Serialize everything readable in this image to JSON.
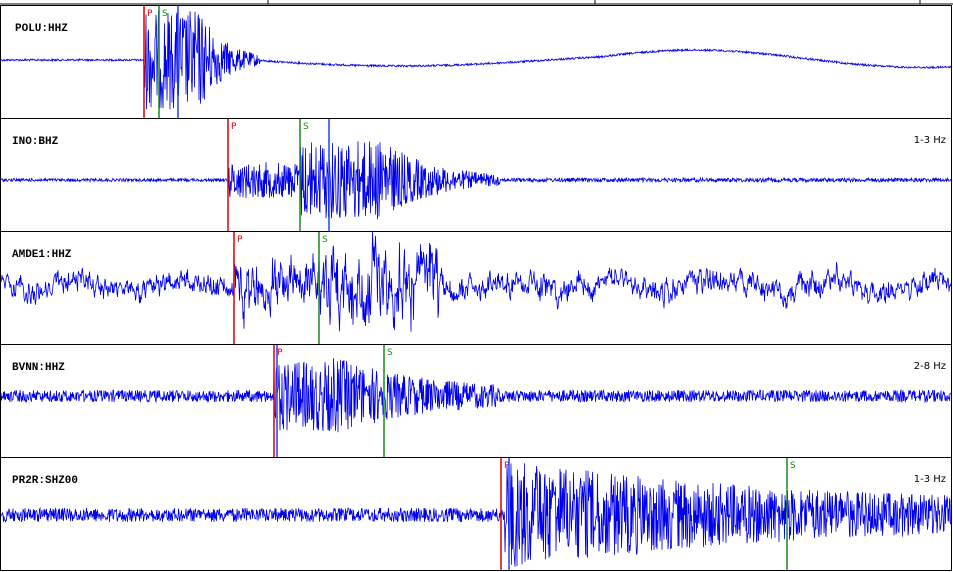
{
  "traces": [
    {
      "station": "POLU:HHZ",
      "picks": [
        {
          "label": "P"
        },
        {
          "label": "S"
        }
      ]
    },
    {
      "station": "INO:BHZ",
      "filter": "1-3 Hz",
      "picks": [
        {
          "label": "P"
        },
        {
          "label": "S"
        }
      ]
    },
    {
      "station": "AMDE1:HHZ",
      "picks": [
        {
          "label": "P"
        },
        {
          "label": "S"
        }
      ]
    },
    {
      "station": "BVNN:HHZ",
      "filter": "2-8 Hz",
      "picks": [
        {
          "label": "P"
        },
        {
          "label": "S"
        }
      ]
    },
    {
      "station": "PR2R:SHZ00",
      "filter": "1-3 Hz",
      "picks": [
        {
          "label": "P"
        },
        {
          "label": "S"
        }
      ]
    }
  ]
}
